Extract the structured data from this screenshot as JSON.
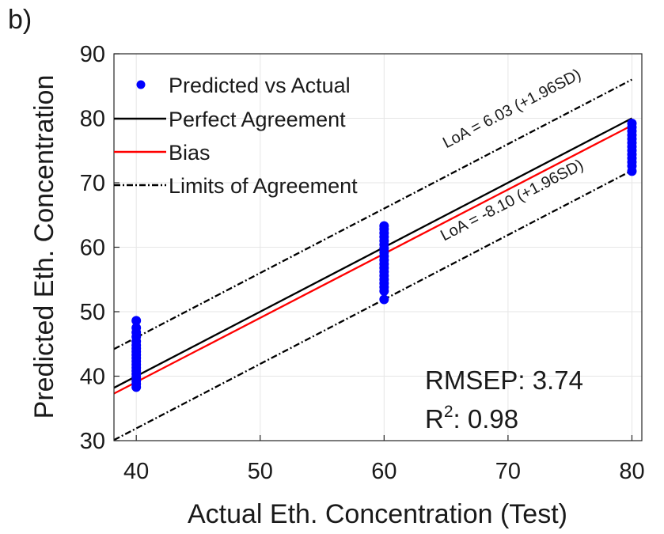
{
  "panel_label": "b)",
  "chart_data": {
    "type": "scatter",
    "xlabel": "Actual Eth. Concentration (Test)",
    "ylabel": "Predicted Eth. Concentration",
    "xlim": [
      38.2,
      80.8
    ],
    "ylim": [
      30,
      90
    ],
    "xticks": [
      40,
      50,
      60,
      70,
      80
    ],
    "yticks": [
      30,
      40,
      50,
      60,
      70,
      80,
      90
    ],
    "grid": true,
    "legend_position": "top-left",
    "series": [
      {
        "name": "Predicted vs Actual",
        "kind": "points",
        "color": "#0000ff",
        "points": [
          [
            40,
            38.3
          ],
          [
            40,
            38.8
          ],
          [
            40,
            39.3
          ],
          [
            40,
            39.8
          ],
          [
            40,
            40.3
          ],
          [
            40,
            40.8
          ],
          [
            40,
            41.3
          ],
          [
            40,
            41.8
          ],
          [
            40,
            42.3
          ],
          [
            40,
            42.8
          ],
          [
            40,
            43.3
          ],
          [
            40,
            43.8
          ],
          [
            40,
            44.3
          ],
          [
            40,
            44.8
          ],
          [
            40,
            45.4
          ],
          [
            40,
            46.1
          ],
          [
            40,
            46.8
          ],
          [
            40,
            47.5
          ],
          [
            40,
            48.6
          ],
          [
            60,
            51.9
          ],
          [
            60,
            53.2
          ],
          [
            60,
            53.8
          ],
          [
            60,
            54.4
          ],
          [
            60,
            55.0
          ],
          [
            60,
            55.6
          ],
          [
            60,
            56.2
          ],
          [
            60,
            56.8
          ],
          [
            60,
            57.4
          ],
          [
            60,
            58.0
          ],
          [
            60,
            58.6
          ],
          [
            60,
            59.2
          ],
          [
            60,
            59.8
          ],
          [
            60,
            60.4
          ],
          [
            60,
            61.0
          ],
          [
            60,
            61.6
          ],
          [
            60,
            62.2
          ],
          [
            60,
            62.8
          ],
          [
            60,
            63.3
          ],
          [
            80,
            71.8
          ],
          [
            80,
            72.6
          ],
          [
            80,
            73.2
          ],
          [
            80,
            73.8
          ],
          [
            80,
            74.4
          ],
          [
            80,
            75.0
          ],
          [
            80,
            75.6
          ],
          [
            80,
            76.2
          ],
          [
            80,
            76.8
          ],
          [
            80,
            77.4
          ],
          [
            80,
            78.0
          ],
          [
            80,
            78.6
          ],
          [
            80,
            79.2
          ]
        ]
      },
      {
        "name": "Perfect Agreement",
        "kind": "line",
        "color": "#000000",
        "dash": "solid",
        "points": [
          [
            38.2,
            38.2
          ],
          [
            80,
            80
          ]
        ]
      },
      {
        "name": "Bias",
        "kind": "line",
        "color": "#ff0000",
        "dash": "solid",
        "points": [
          [
            38.2,
            37.3
          ],
          [
            80,
            78.9
          ]
        ]
      },
      {
        "name": "Limits of Agreement",
        "kind": "line",
        "color": "#000000",
        "dash": "dashdot",
        "points": [
          [
            38.2,
            44.2
          ],
          [
            80,
            86.0
          ]
        ]
      },
      {
        "name": "",
        "kind": "line",
        "color": "#000000",
        "dash": "dashdot",
        "points": [
          [
            38.2,
            30.1
          ],
          [
            80,
            71.9
          ]
        ]
      }
    ],
    "annotations": [
      {
        "text": "LoA = 6.03 (+1.96SD)",
        "x": 70.5,
        "y": 80.8
      },
      {
        "text": "LoA = -8.10 (+1.96SD)",
        "x": 70.5,
        "y": 66.6
      }
    ],
    "stats": {
      "rmsep": "RMSEP: 3.74",
      "r2_base": "R",
      "r2_sup": "2",
      "r2_value": ": 0.98"
    }
  }
}
